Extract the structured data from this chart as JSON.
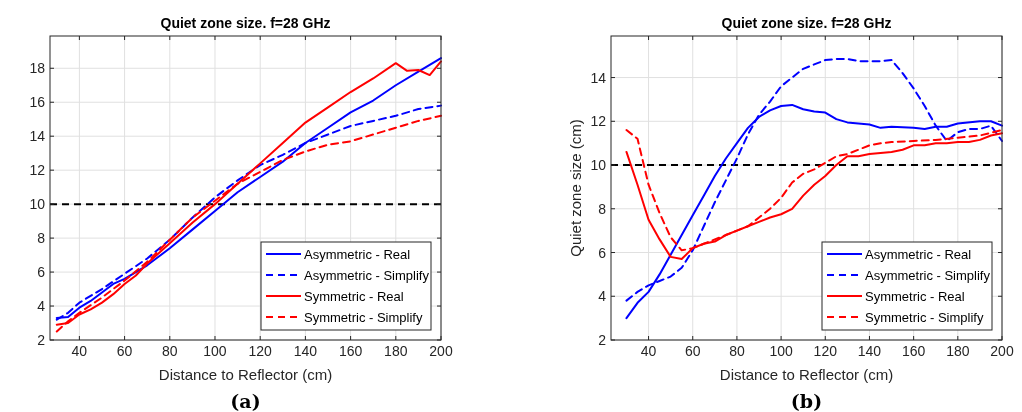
{
  "chart_data": [
    {
      "type": "line",
      "title": "Quiet zone size. f=28 GHz",
      "xlabel": "Distance to Reflector (cm)",
      "annotations": [
        "(a)"
      ],
      "xlim": [
        27,
        200
      ],
      "ylim": [
        2,
        19.9
      ],
      "xticks": [
        40,
        60,
        80,
        100,
        120,
        140,
        160,
        180,
        200
      ],
      "yticks": [
        2,
        4,
        6,
        8,
        10,
        12,
        14,
        16,
        18
      ],
      "grid": true,
      "legend": "bottom right",
      "ref_lines": [
        {
          "axis": "y",
          "value": 10,
          "color": "#000000",
          "line_style": "dashed"
        }
      ],
      "series": [
        {
          "name": "Asymmetric - Real",
          "color": "#0000ff",
          "line_style": "solid",
          "x": [
            30,
            35,
            40,
            45,
            50,
            55,
            60,
            65,
            70,
            75,
            80,
            90,
            100,
            110,
            120,
            130,
            140,
            150,
            160,
            170,
            180,
            190,
            200
          ],
          "values": [
            3.3,
            3.35,
            3.9,
            4.3,
            4.8,
            5.3,
            5.6,
            6.0,
            6.4,
            6.9,
            7.4,
            8.5,
            9.6,
            10.7,
            11.6,
            12.5,
            13.6,
            14.5,
            15.4,
            16.1,
            17.0,
            17.8,
            18.6
          ]
        },
        {
          "name": "Asymmetric - Simplify",
          "color": "#0000ff",
          "line_style": "dashed",
          "x": [
            30,
            35,
            40,
            50,
            60,
            70,
            80,
            90,
            100,
            110,
            120,
            130,
            140,
            150,
            160,
            170,
            180,
            190,
            200
          ],
          "values": [
            3.2,
            3.6,
            4.2,
            5.0,
            5.9,
            6.8,
            7.9,
            9.2,
            10.4,
            11.4,
            12.3,
            12.9,
            13.6,
            14.1,
            14.6,
            14.9,
            15.2,
            15.6,
            15.8
          ]
        },
        {
          "name": "Symmetric - Real",
          "color": "#ff0000",
          "line_style": "solid",
          "x": [
            30,
            35,
            40,
            45,
            50,
            55,
            60,
            65,
            70,
            80,
            90,
            100,
            110,
            120,
            130,
            140,
            150,
            160,
            170,
            180,
            185,
            190,
            195,
            200
          ],
          "values": [
            2.9,
            3.0,
            3.5,
            3.8,
            4.2,
            4.7,
            5.3,
            5.8,
            6.5,
            7.7,
            8.9,
            10.0,
            11.2,
            12.4,
            13.6,
            14.8,
            15.7,
            16.6,
            17.4,
            18.3,
            17.85,
            17.9,
            17.6,
            18.4
          ]
        },
        {
          "name": "Symmetric - Simplify",
          "color": "#ff0000",
          "line_style": "dashed",
          "x": [
            30,
            35,
            40,
            50,
            60,
            70,
            80,
            90,
            100,
            110,
            120,
            130,
            140,
            150,
            160,
            170,
            180,
            190,
            200
          ],
          "values": [
            2.5,
            3.1,
            3.6,
            4.5,
            5.5,
            6.6,
            7.9,
            9.2,
            10.2,
            11.2,
            11.9,
            12.6,
            13.1,
            13.5,
            13.7,
            14.1,
            14.5,
            14.9,
            15.2
          ]
        }
      ]
    },
    {
      "type": "line",
      "title": "Quiet zone size. f=28 GHz",
      "xlabel": "Distance to Reflector (cm)",
      "ylabel": "Quiet zone size (cm)",
      "annotations": [
        "(b)"
      ],
      "xlim": [
        23,
        200
      ],
      "ylim": [
        2,
        15.9
      ],
      "xticks": [
        40,
        60,
        80,
        100,
        120,
        140,
        160,
        180,
        200
      ],
      "yticks": [
        2,
        4,
        6,
        8,
        10,
        12,
        14
      ],
      "grid": true,
      "legend": "bottom right",
      "ref_lines": [
        {
          "axis": "y",
          "value": 10,
          "color": "#000000",
          "line_style": "dashed"
        }
      ],
      "series": [
        {
          "name": "Asymmetric - Real",
          "color": "#0000ff",
          "line_style": "solid",
          "x": [
            30,
            35,
            40,
            45,
            50,
            55,
            60,
            65,
            70,
            75,
            80,
            85,
            90,
            95,
            100,
            105,
            110,
            115,
            120,
            125,
            130,
            140,
            145,
            150,
            160,
            165,
            170,
            175,
            180,
            190,
            195,
            200
          ],
          "values": [
            3.0,
            3.7,
            4.2,
            5.0,
            5.9,
            6.8,
            7.7,
            8.6,
            9.5,
            10.3,
            11.0,
            11.7,
            12.2,
            12.5,
            12.7,
            12.75,
            12.55,
            12.45,
            12.4,
            12.1,
            11.95,
            11.85,
            11.7,
            11.75,
            11.7,
            11.65,
            11.75,
            11.75,
            11.9,
            12.0,
            12.0,
            11.8
          ]
        },
        {
          "name": "Asymmetric - Simplify",
          "color": "#0000ff",
          "line_style": "dashed",
          "x": [
            30,
            35,
            40,
            45,
            50,
            55,
            60,
            65,
            70,
            75,
            80,
            85,
            90,
            95,
            100,
            105,
            110,
            115,
            120,
            125,
            130,
            135,
            140,
            145,
            150,
            155,
            160,
            165,
            170,
            175,
            180,
            185,
            190,
            195,
            200
          ],
          "values": [
            3.8,
            4.2,
            4.5,
            4.7,
            4.9,
            5.3,
            6.1,
            7.2,
            8.3,
            9.3,
            10.3,
            11.4,
            12.3,
            12.9,
            13.6,
            14.0,
            14.4,
            14.6,
            14.8,
            14.85,
            14.85,
            14.75,
            14.75,
            14.75,
            14.8,
            14.2,
            13.5,
            12.7,
            11.8,
            11.1,
            11.5,
            11.65,
            11.65,
            11.8,
            11.1
          ]
        },
        {
          "name": "Symmetric - Real",
          "color": "#ff0000",
          "line_style": "solid",
          "x": [
            30,
            35,
            40,
            45,
            50,
            55,
            60,
            65,
            70,
            75,
            80,
            85,
            90,
            95,
            100,
            105,
            110,
            115,
            120,
            125,
            130,
            135,
            140,
            145,
            150,
            155,
            160,
            165,
            170,
            175,
            180,
            185,
            190,
            195,
            200
          ],
          "values": [
            10.6,
            9.1,
            7.5,
            6.6,
            5.8,
            5.7,
            6.2,
            6.4,
            6.5,
            6.8,
            7.0,
            7.2,
            7.4,
            7.6,
            7.75,
            8.0,
            8.6,
            9.1,
            9.5,
            10.0,
            10.4,
            10.4,
            10.5,
            10.55,
            10.6,
            10.7,
            10.9,
            10.9,
            11.0,
            11.0,
            11.05,
            11.05,
            11.15,
            11.35,
            11.45
          ]
        },
        {
          "name": "Symmetric - Simplify",
          "color": "#ff0000",
          "line_style": "dashed",
          "x": [
            30,
            35,
            40,
            45,
            50,
            55,
            60,
            65,
            70,
            75,
            80,
            85,
            90,
            95,
            100,
            105,
            110,
            115,
            120,
            125,
            130,
            135,
            140,
            145,
            150,
            160,
            170,
            180,
            190,
            200
          ],
          "values": [
            11.6,
            11.2,
            9.1,
            7.8,
            6.7,
            6.1,
            6.2,
            6.4,
            6.6,
            6.8,
            7.0,
            7.2,
            7.6,
            8.0,
            8.5,
            9.2,
            9.6,
            9.8,
            10.1,
            10.4,
            10.5,
            10.7,
            10.9,
            11.0,
            11.05,
            11.1,
            11.15,
            11.25,
            11.35,
            11.6
          ]
        }
      ]
    }
  ]
}
